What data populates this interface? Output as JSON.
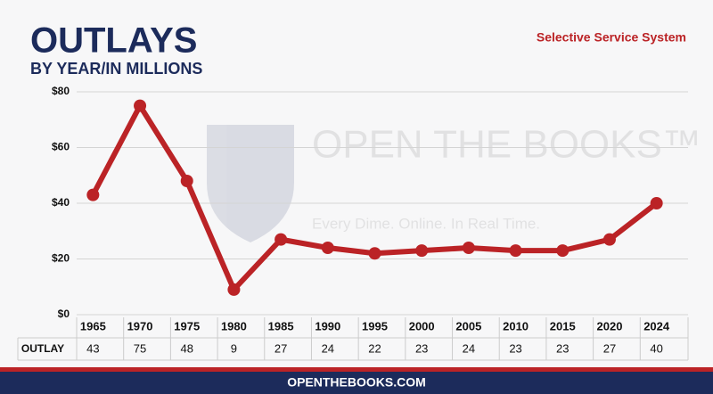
{
  "chart_data": {
    "type": "line",
    "title": "OUTLAYS",
    "subtitle": "BY YEAR/IN MILLIONS",
    "agency": "Selective Service System",
    "watermark": {
      "name": "OPEN THE BOOKS™",
      "tagline": "Every Dime. Online. In Real Time."
    },
    "table_row_label": "OUTLAY",
    "footer": "OPENTHEBOOKS.COM",
    "categories": [
      "1965",
      "1970",
      "1975",
      "1980",
      "1985",
      "1990",
      "1995",
      "2000",
      "2005",
      "2010",
      "2015",
      "2020",
      "2024"
    ],
    "values": [
      43,
      75,
      48,
      9,
      27,
      24,
      22,
      23,
      24,
      23,
      23,
      27,
      40
    ],
    "color": "#bb2326",
    "ylim": [
      0,
      80
    ],
    "yticks": [
      {
        "value": 0,
        "label": "$0"
      },
      {
        "value": 20,
        "label": "$20"
      },
      {
        "value": 40,
        "label": "$40"
      },
      {
        "value": 60,
        "label": "$60"
      },
      {
        "value": 80,
        "label": "$80"
      }
    ],
    "grid": true
  }
}
